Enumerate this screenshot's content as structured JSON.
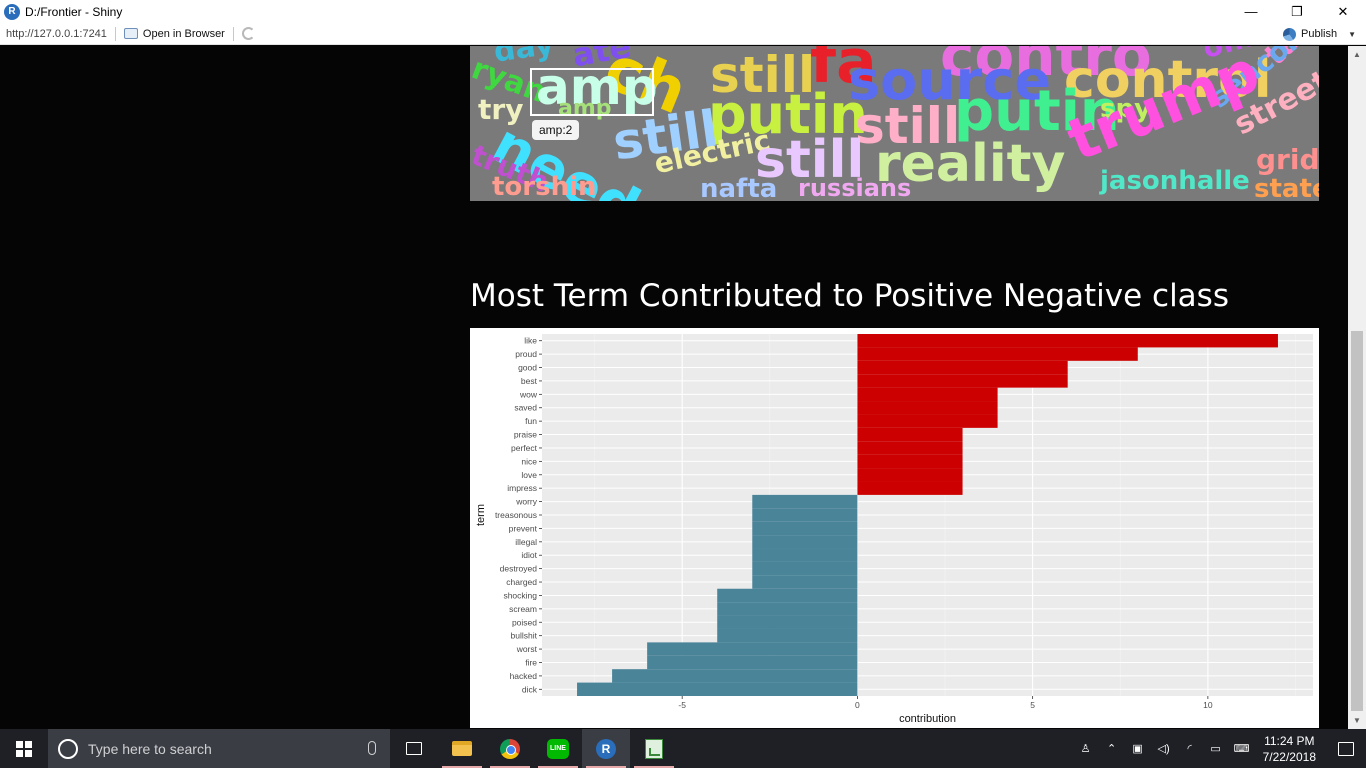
{
  "window": {
    "title": "D:/Frontier - Shiny",
    "minimize": "—",
    "maximize": "❐",
    "close": "✕"
  },
  "toolbar": {
    "url": "http://127.0.0.1:7241",
    "open_browser": "Open in Browser",
    "publish": "Publish"
  },
  "wordcloud": {
    "words": [
      {
        "text": "day",
        "color": "#3ab8d8"
      },
      {
        "text": "ate",
        "color": "#7f4ff0"
      },
      {
        "text": "ch",
        "color": "#f0d000"
      },
      {
        "text": "fa",
        "color": "#e8202a"
      },
      {
        "text": "contro",
        "color": "#e86ee0"
      },
      {
        "text": "offic",
        "color": "#c850f0"
      },
      {
        "text": "ryan",
        "color": "#40d840"
      },
      {
        "text": "amp",
        "color": "#c8ffe8"
      },
      {
        "text": "amp",
        "color": "#a6e07a"
      },
      {
        "text": "still",
        "color": "#e8d050"
      },
      {
        "text": "source",
        "color": "#5a6cf0"
      },
      {
        "text": "control",
        "color": "#f0d060"
      },
      {
        "text": "tar",
        "color": "#ff80d0"
      },
      {
        "text": "sencornyn",
        "color": "#6aa8f0"
      },
      {
        "text": "try",
        "color": "#f0f0c0"
      },
      {
        "text": "putin",
        "color": "#c8f040"
      },
      {
        "text": "still",
        "color": "#ffb0c8"
      },
      {
        "text": "putin",
        "color": "#40f090"
      },
      {
        "text": "spy",
        "color": "#c0f060"
      },
      {
        "text": "trump",
        "color": "#ff50e0"
      },
      {
        "text": "street",
        "color": "#ffb0c0"
      },
      {
        "text": "need",
        "color": "#40e0ff"
      },
      {
        "text": "still",
        "color": "#a0d0ff"
      },
      {
        "text": "truth",
        "color": "#c050d0"
      },
      {
        "text": "electric",
        "color": "#f0f0a0"
      },
      {
        "text": "still",
        "color": "#e8c8ff"
      },
      {
        "text": "reality",
        "color": "#d0f0a0"
      },
      {
        "text": "grid",
        "color": "#ff9090"
      },
      {
        "text": "torshin",
        "color": "#ff9c90"
      },
      {
        "text": "nafta",
        "color": "#a8c8ff"
      },
      {
        "text": "russians",
        "color": "#f0a8f0"
      },
      {
        "text": "jasonhalle",
        "color": "#50e8c8"
      },
      {
        "text": "state",
        "color": "#ffa050"
      }
    ],
    "tooltip": "amp:2"
  },
  "section": {
    "title": "Most Term Contributed to Positive Negative class"
  },
  "chart_data": {
    "type": "bar",
    "orientation": "horizontal",
    "xlabel": "contribution",
    "ylabel": "term",
    "xlim": [
      -9,
      13
    ],
    "xticks": [
      -5,
      0,
      5,
      10
    ],
    "grid": true,
    "categories": [
      "like",
      "proud",
      "good",
      "best",
      "wow",
      "saved",
      "fun",
      "praise",
      "perfect",
      "nice",
      "love",
      "impress",
      "worry",
      "treasonous",
      "prevent",
      "illegal",
      "idiot",
      "destroyed",
      "charged",
      "shocking",
      "scream",
      "poised",
      "bullshit",
      "worst",
      "fire",
      "hacked",
      "dick"
    ],
    "values": [
      12,
      8,
      6,
      6,
      4,
      4,
      4,
      3,
      3,
      3,
      3,
      3,
      -3,
      -3,
      -3,
      -3,
      -3,
      -3,
      -3,
      -4,
      -4,
      -4,
      -4,
      -6,
      -6,
      -7,
      -8
    ],
    "colors": {
      "positive": "#cc0000",
      "negative": "#4a8499"
    }
  },
  "taskbar": {
    "search_placeholder": "Type here to search",
    "apps": [
      "task-view",
      "file-explorer",
      "chrome",
      "line",
      "rstudio",
      "spreadsheet"
    ],
    "line_label": "LINE",
    "r_label": "R",
    "time": "11:24 PM",
    "date": "7/22/2018"
  }
}
